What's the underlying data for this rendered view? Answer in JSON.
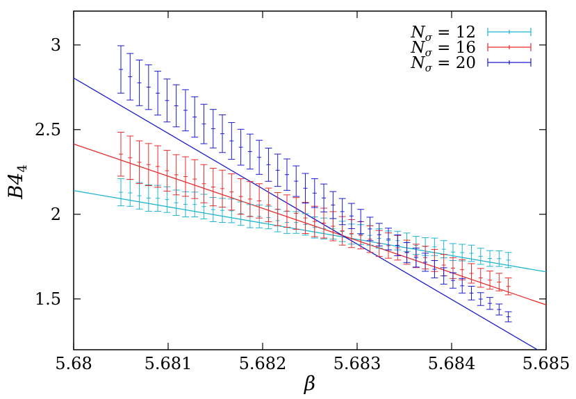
{
  "chart_data": {
    "type": "scatter",
    "xlabel": "β",
    "ylabel": "B4",
    "xlim": [
      5.68,
      5.685
    ],
    "ylim": [
      1.2,
      3.2
    ],
    "x_ticks": [
      "5.68",
      "5.681",
      "5.682",
      "5.683",
      "5.684",
      "5.685"
    ],
    "y_ticks": [
      "1.5",
      "2",
      "2.5",
      "3"
    ],
    "grid": false,
    "legend_position": "top-right",
    "series": [
      {
        "name": "Nσ = 12",
        "legend_symbol": "N",
        "legend_subscript": "σ",
        "legend_value": "= 12",
        "color": "#1eb4d2",
        "x_start": 5.6805,
        "x_end": 5.6846,
        "y_start": 2.13,
        "y_end": 1.725,
        "err_start": 0.08,
        "err_end": 0.045,
        "fit": {
          "x": [
            5.68,
            5.685
          ],
          "y": [
            2.14,
            1.66
          ]
        }
      },
      {
        "name": "Nσ = 16",
        "legend_symbol": "N",
        "legend_subscript": "σ",
        "legend_value": "= 16",
        "color": "#e82a2a",
        "x_start": 5.6805,
        "x_end": 5.6846,
        "y_start": 2.35,
        "y_end": 1.575,
        "err_start": 0.13,
        "err_end": 0.05,
        "fit": {
          "x": [
            5.68,
            5.685
          ],
          "y": [
            2.415,
            1.465
          ]
        }
      },
      {
        "name": "Nσ = 20",
        "legend_symbol": "N",
        "legend_subscript": "σ",
        "legend_value": "= 20",
        "color": "#1a1ad0",
        "x_start": 5.6805,
        "x_end": 5.6846,
        "y_start": 2.85,
        "y_end": 1.4,
        "err_start": 0.14,
        "err_end": 0.03,
        "fit": {
          "x": [
            5.68,
            5.685
          ],
          "y": [
            2.805,
            1.17
          ]
        }
      }
    ],
    "n_points": 43
  }
}
